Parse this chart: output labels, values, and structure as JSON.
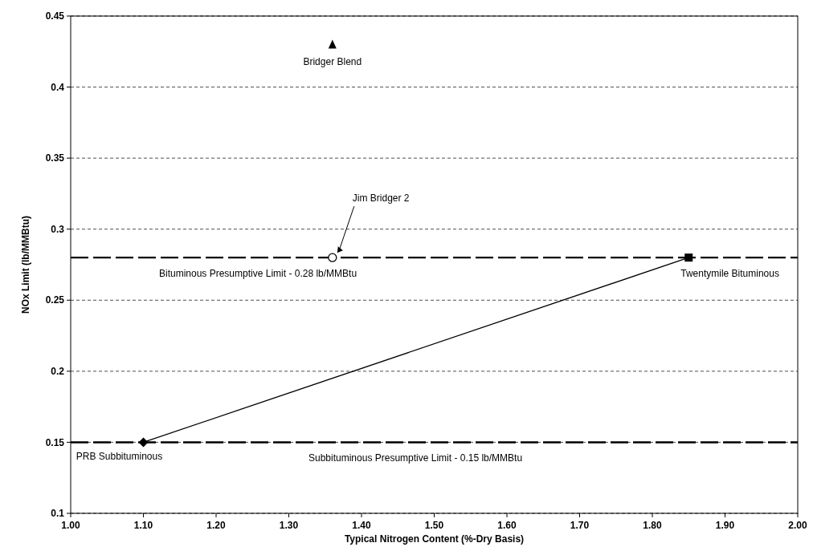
{
  "chart_data": {
    "type": "scatter",
    "xlabel": "Typical Nitrogen Content (%-Dry Basis)",
    "ylabel": "NOx Limit (lb/MMBtu)",
    "xlim": [
      1,
      2
    ],
    "xticks": [
      {
        "value": 1,
        "label": "1.00"
      },
      {
        "value": 1.1,
        "label": "1.10"
      },
      {
        "value": 1.2,
        "label": "1.20"
      },
      {
        "value": 1.3,
        "label": "1.30"
      },
      {
        "value": 1.4,
        "label": "1.40"
      },
      {
        "value": 1.5,
        "label": "1.50"
      },
      {
        "value": 1.6,
        "label": "1.60"
      },
      {
        "value": 1.7,
        "label": "1.70"
      },
      {
        "value": 1.8,
        "label": "1.80"
      },
      {
        "value": 1.9,
        "label": "1.90"
      },
      {
        "value": 2,
        "label": "2.00"
      }
    ],
    "ylim": [
      0.1,
      0.45
    ],
    "yticks": [
      0.1,
      0.15,
      0.2,
      0.25,
      0.3,
      0.35,
      0.4,
      0.45
    ],
    "grid": "y",
    "series": [
      {
        "type": "line",
        "x": [
          1.1,
          1.85
        ],
        "values": [
          0.15,
          0.28
        ],
        "color": "#000000",
        "marker": "none",
        "line_style": "solid"
      },
      {
        "name": "PRB Subbituminous",
        "x": [
          1.1
        ],
        "values": [
          0.15
        ],
        "color": "#000000",
        "marker": "diamond"
      },
      {
        "name": "Twentymile Bituminous",
        "x": [
          1.85
        ],
        "values": [
          0.28
        ],
        "color": "#000000",
        "marker": "square"
      },
      {
        "name": "Bridger Blend",
        "x": [
          1.36
        ],
        "values": [
          0.43
        ],
        "color": "#000000",
        "marker": "triangle"
      },
      {
        "name": "Jim Bridger 2",
        "x": [
          1.36
        ],
        "values": [
          0.28
        ],
        "color": "#000000",
        "marker": "circle"
      }
    ],
    "ref_lines": [
      {
        "axis": "y",
        "value": 0.28,
        "label": "Bituminous Presumptive Limit - 0.28 lb/MMBtu",
        "color": "#000000",
        "line_style": "dashed"
      },
      {
        "axis": "y",
        "value": 0.15,
        "label": "Subbituminous Presumptive Limit - 0.15 lb/MMBtu",
        "color": "#000000",
        "line_style": "dashed"
      }
    ]
  }
}
